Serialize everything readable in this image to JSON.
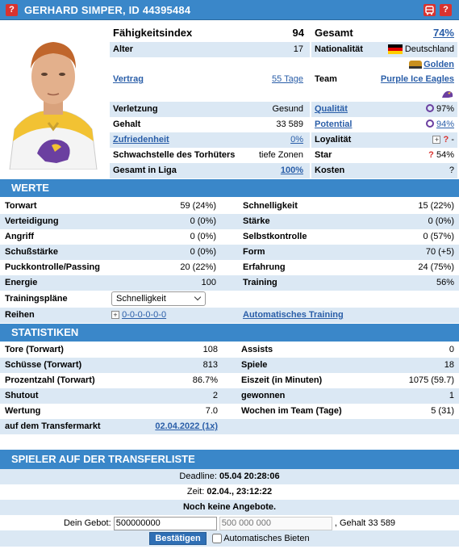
{
  "title": "GERHARD SIMPER, ID 44395484",
  "header": {
    "skill_index_label": "Fähigkeitsindex",
    "skill_index_value": "94",
    "gesamt_label": "Gesamt",
    "gesamt_value": "74%"
  },
  "info": {
    "alter_label": "Alter",
    "alter_value": "17",
    "nation_label": "Nationalität",
    "nation_value": "Deutschland",
    "golden_label": "Golden",
    "vertrag_label": "Vertrag",
    "vertrag_value": "55 Tage",
    "team_label": "Team",
    "team_value": "Purple Ice Eagles",
    "verletzung_label": "Verletzung",
    "verletzung_value": "Gesund",
    "qualitaet_label": "Qualität",
    "qualitaet_value": "97%",
    "gehalt_label": "Gehalt",
    "gehalt_value": "33 589",
    "potential_label": "Potential",
    "potential_value": "94%",
    "zufriedenheit_label": "Zufriedenheit",
    "zufriedenheit_value": "0%",
    "loyalitaet_label": "Loyalität",
    "loyalitaet_value": "-",
    "schwach_label": "Schwachstelle des Torhüters",
    "schwach_value": "tiefe Zonen",
    "star_label": "Star",
    "star_value": "54%",
    "liga_label": "Gesamt in Liga",
    "liga_value": "100%",
    "kosten_label": "Kosten",
    "kosten_value": "?"
  },
  "werte": {
    "section": "WERTE",
    "torwart_label": "Torwart",
    "torwart_value": "59 (24%)",
    "schnell_label": "Schnelligkeit",
    "schnell_value": "15 (22%)",
    "vert_label": "Verteidigung",
    "vert_value": "0 (0%)",
    "staerke_label": "Stärke",
    "staerke_value": "0 (0%)",
    "angriff_label": "Angriff",
    "angriff_value": "0 (0%)",
    "selbst_label": "Selbstkontrolle",
    "selbst_value": "0 (57%)",
    "schuss_label": "Schußstärke",
    "schuss_value": "0 (0%)",
    "form_label": "Form",
    "form_value": "70 (+5)",
    "puck_label": "Puckkontrolle/Passing",
    "puck_value": "20 (22%)",
    "erfahrung_label": "Erfahrung",
    "erfahrung_value": "24 (75%)",
    "energie_label": "Energie",
    "energie_value": "100",
    "training_label": "Training",
    "training_value": "56%",
    "plaene_label": "Trainingspläne",
    "plaene_selected": "Schnelligkeit",
    "reihen_label": "Reihen",
    "reihen_value": "0-0-0-0-0-0",
    "auto_training": "Automatisches Training"
  },
  "stats": {
    "section": "STATISTIKEN",
    "tore_label": "Tore (Torwart)",
    "tore_value": "108",
    "assists_label": "Assists",
    "assists_value": "0",
    "schuesse_label": "Schüsse (Torwart)",
    "schuesse_value": "813",
    "spiele_label": "Spiele",
    "spiele_value": "18",
    "prozent_label": "Prozentzahl (Torwart)",
    "prozent_value": "86.7%",
    "eiszeit_label": "Eiszeit (in Minuten)",
    "eiszeit_value": "1075 (59.7)",
    "shutout_label": "Shutout",
    "shutout_value": "2",
    "gewonnen_label": "gewonnen",
    "gewonnen_value": "1",
    "wertung_label": "Wertung",
    "wertung_value": "7.0",
    "wochen_label": "Wochen im Team (Tage)",
    "wochen_value": "5 (31)",
    "transfer_label": "auf dem Transfermarkt",
    "transfer_value": "02.04.2022 (1x)"
  },
  "transfer": {
    "section": "SPIELER AUF DER TRANSFERLISTE",
    "deadline_label": "Deadline:",
    "deadline_value": "05.04 20:28:06",
    "zeit_label": "Zeit:",
    "zeit_value": "02.04., 23:12:22",
    "no_offers": "Noch keine Angebote.",
    "gebot_label": "Dein Gebot:",
    "gebot_value": "500000000",
    "gebot_placeholder": "500 000 000",
    "gehalt_text": ", Gehalt 33 589",
    "confirm_button": "Bestätigen",
    "auto_bid_label": "Automatisches Bieten"
  },
  "colors": {
    "header_blue": "#3a87c9",
    "row_shade": "#dbe8f4",
    "link": "#2a5ea8",
    "alert_red": "#d9332f"
  }
}
